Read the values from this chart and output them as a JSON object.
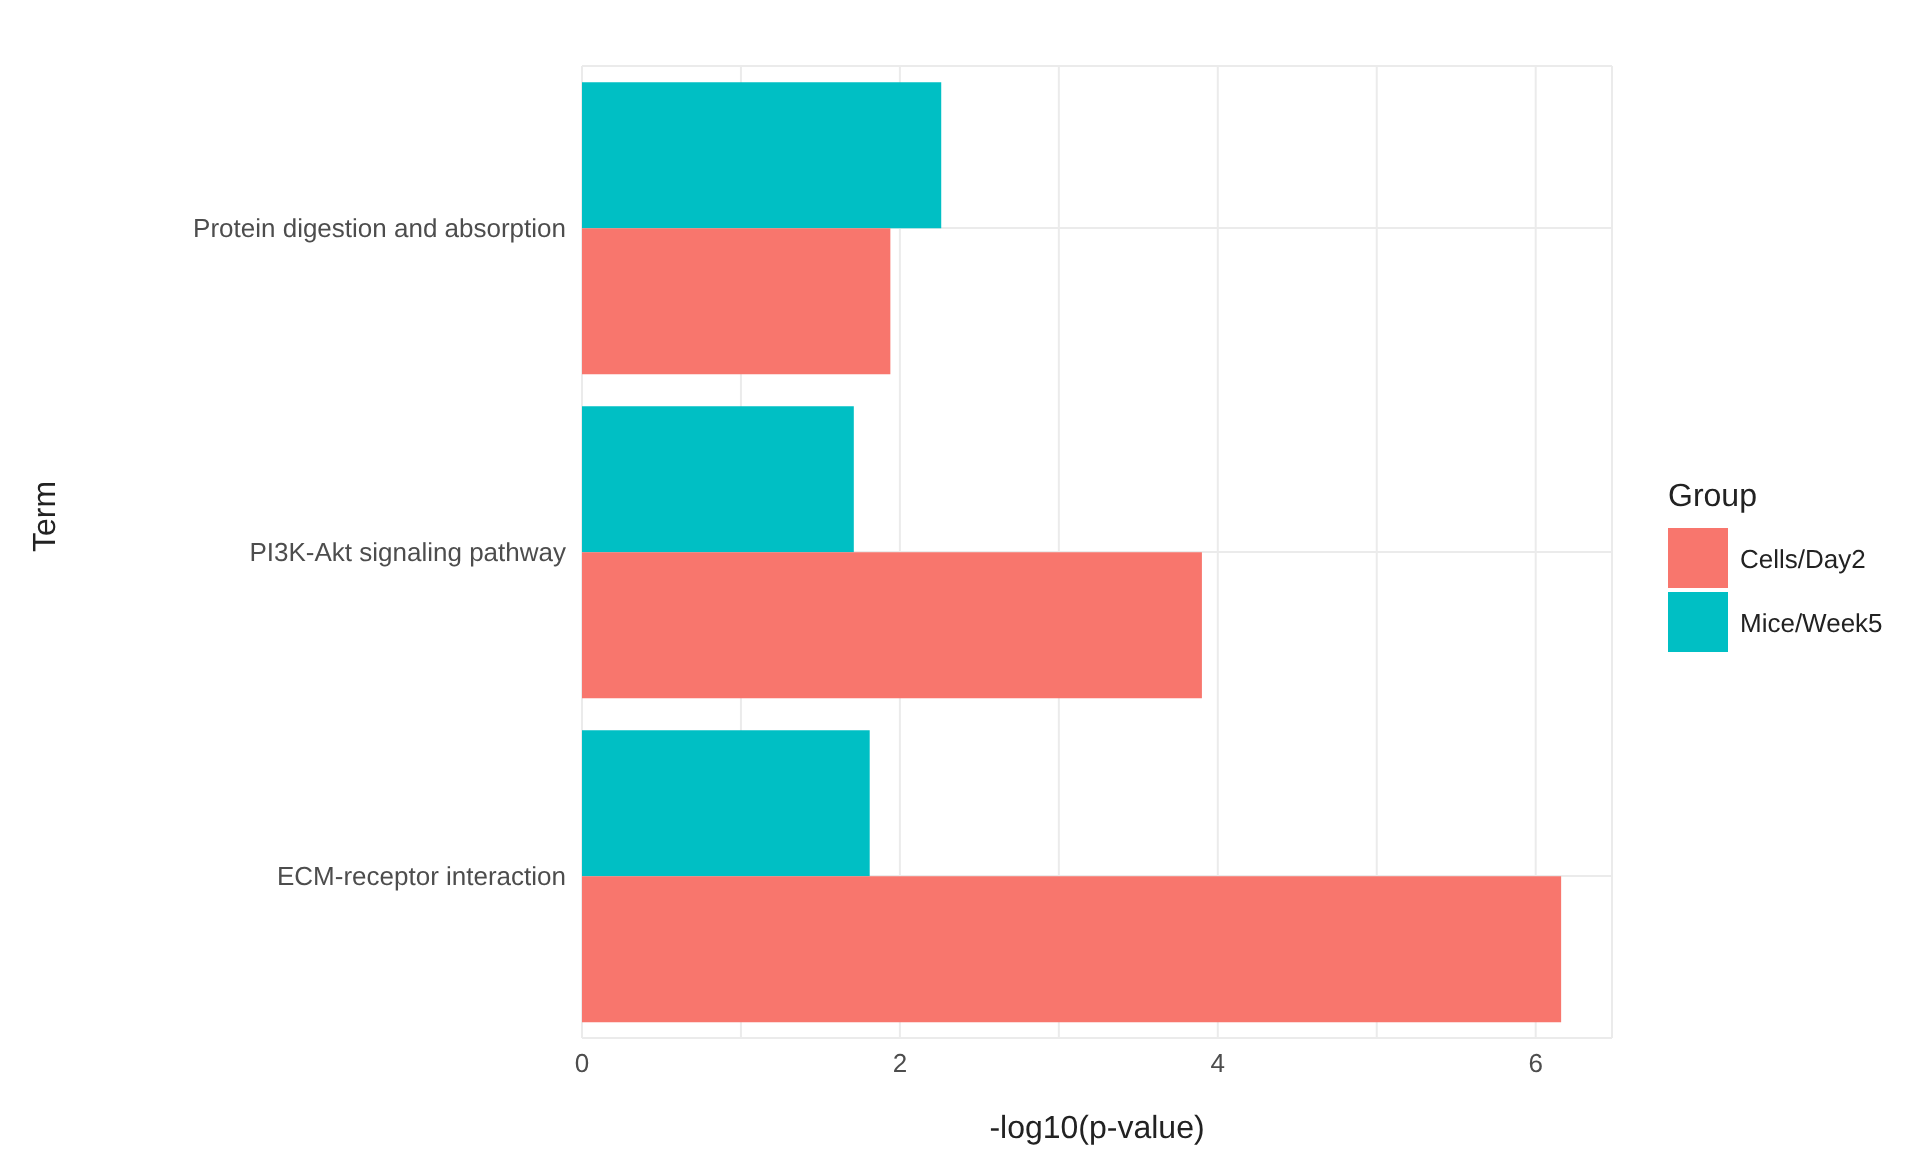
{
  "chart_data": {
    "type": "bar",
    "orientation": "horizontal",
    "xlabel": "-log10(p-value)",
    "ylabel": "Term",
    "legend_title": "Group",
    "legend": "right",
    "categories": [
      "Protein digestion and absorption",
      "PI3K-Akt signaling pathway",
      "ECM-receptor interaction"
    ],
    "series": [
      {
        "name": "Cells/Day2",
        "color": "#f8766d",
        "values": [
          1.94,
          3.9,
          6.16
        ]
      },
      {
        "name": "Mice/Week5",
        "color": "#00bfc4",
        "values": [
          2.26,
          1.71,
          1.81
        ]
      }
    ],
    "xlim": [
      0,
      6.48
    ],
    "xticks": [
      0,
      {
        "value": 1,
        "label": null
      },
      2,
      {
        "value": 3,
        "label": null
      },
      4,
      {
        "value": 5,
        "label": null
      },
      6
    ],
    "grid": true
  }
}
